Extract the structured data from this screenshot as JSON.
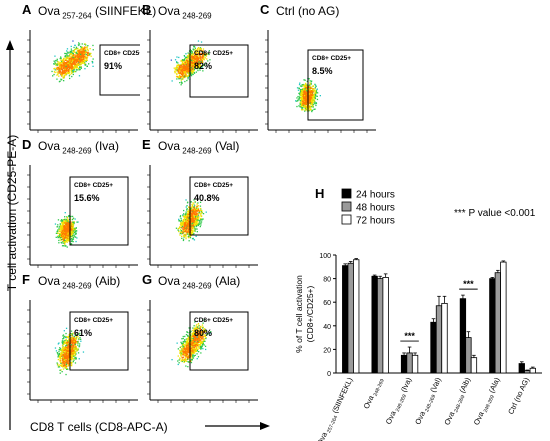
{
  "axes": {
    "y_label": "T cell activation (CD25-PE-A)",
    "x_label": "CD8 T cells (CD8-APC-A)"
  },
  "flow_panels": [
    {
      "letter": "A",
      "title": "Ova",
      "title_sub": "257-264",
      "title_suffix": "(SIINFEKL)",
      "gate_label": "CD8+ CD25+",
      "percent": "91%"
    },
    {
      "letter": "B",
      "title": "Ova",
      "title_sub": "248-269",
      "title_suffix": "",
      "gate_label": "CD8+ CD25+",
      "percent": "82%"
    },
    {
      "letter": "C",
      "title": "Ctrl (no AG)",
      "title_sub": "",
      "title_suffix": "",
      "gate_label": "CD8+ CD25+",
      "percent": "8.5%"
    },
    {
      "letter": "D",
      "title": "Ova",
      "title_sub": "248-269",
      "title_suffix": "(Iva)",
      "gate_label": "CD8+ CD25+",
      "percent": "15.6%"
    },
    {
      "letter": "E",
      "title": "Ova",
      "title_sub": "248-269",
      "title_suffix": "(Val)",
      "gate_label": "CD8+ CD25+",
      "percent": "40.8%"
    },
    {
      "letter": "F",
      "title": "Ova",
      "title_sub": "248-269",
      "title_suffix": "(Aib)",
      "gate_label": "CD8+ CD25+",
      "percent": "61%"
    },
    {
      "letter": "G",
      "title": "Ova",
      "title_sub": "248-269",
      "title_suffix": "(Ala)",
      "gate_label": "CD8+ CD25+",
      "percent": "80%"
    }
  ],
  "bar_panel": {
    "letter": "H",
    "pvalue_note": "*** P value <0.001",
    "significance_mark": "***"
  },
  "chart_data": {
    "type": "bar",
    "ylabel": "% of T cell activation (CD8+/CD25+)",
    "ylim": [
      0,
      100
    ],
    "yticks": [
      "0",
      "20",
      "40",
      "60",
      "80",
      "100"
    ],
    "categories": [
      {
        "main": "Ova",
        "sub": "257-264",
        "suffix": " (SIINFEKL)"
      },
      {
        "main": "Ova",
        "sub": "248-269",
        "suffix": ""
      },
      {
        "main": "Ova",
        "sub": "248-269",
        "suffix": " (Iva)"
      },
      {
        "main": "Ova",
        "sub": "248-269",
        "suffix": " (Val)"
      },
      {
        "main": "Ova",
        "sub": "248-269",
        "suffix": " (Aib)"
      },
      {
        "main": "Ova",
        "sub": "248-269",
        "suffix": " (Ala)"
      },
      {
        "main": "Ctrl (no AG)",
        "sub": "",
        "suffix": ""
      }
    ],
    "series": [
      {
        "name": "24 hours",
        "color": "#000000",
        "values": [
          91,
          82,
          15,
          43,
          63,
          80,
          8
        ],
        "errors": [
          1.5,
          1,
          2,
          3,
          3,
          1,
          1.5
        ]
      },
      {
        "name": "48 hours",
        "color": "#9a9a9a",
        "values": [
          93,
          80,
          17,
          57,
          30,
          85,
          2
        ],
        "errors": [
          1.5,
          2,
          5,
          8,
          5,
          2,
          0.5
        ]
      },
      {
        "name": "72 hours",
        "color": "#ffffff",
        "values": [
          96,
          81,
          15,
          59,
          13,
          94,
          4
        ],
        "errors": [
          1,
          3,
          2,
          6,
          2,
          1,
          1
        ]
      }
    ],
    "significance": [
      {
        "category_index": 2,
        "label": "***"
      },
      {
        "category_index": 4,
        "label": "***"
      }
    ]
  }
}
